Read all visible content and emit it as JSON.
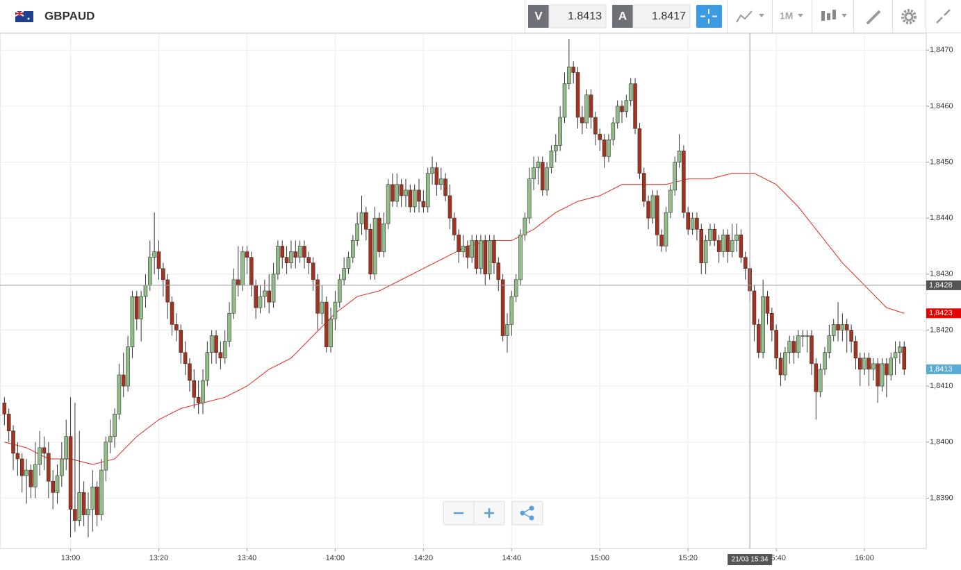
{
  "header": {
    "symbol": "GBPAUD",
    "sell": {
      "label": "V",
      "price": "1.8413"
    },
    "buy": {
      "label": "A",
      "price": "1.8417"
    },
    "timeframe": "1M"
  },
  "chart_data": {
    "type": "candlestick",
    "x": [
      "12:45",
      "12:46",
      "12:47",
      "12:48",
      "12:49",
      "12:50",
      "12:51",
      "12:52",
      "12:53",
      "12:54",
      "12:55",
      "12:56",
      "12:57",
      "12:58",
      "12:59",
      "13:00",
      "13:01",
      "13:02",
      "13:03",
      "13:04",
      "13:05",
      "13:06",
      "13:07",
      "13:08",
      "13:09",
      "13:10",
      "13:11",
      "13:12",
      "13:13",
      "13:14",
      "13:15",
      "13:16",
      "13:17",
      "13:18",
      "13:19",
      "13:20",
      "13:21",
      "13:22",
      "13:23",
      "13:24",
      "13:25",
      "13:26",
      "13:27",
      "13:28",
      "13:29",
      "13:30",
      "13:31",
      "13:32",
      "13:33",
      "13:34",
      "13:35",
      "13:36",
      "13:37",
      "13:38",
      "13:39",
      "13:40",
      "13:41",
      "13:42",
      "13:43",
      "13:44",
      "13:45",
      "13:46",
      "13:47",
      "13:48",
      "13:49",
      "13:50",
      "13:51",
      "13:52",
      "13:53",
      "13:54",
      "13:55",
      "13:56",
      "13:57",
      "13:58",
      "13:59",
      "14:00",
      "14:01",
      "14:02",
      "14:03",
      "14:04",
      "14:05",
      "14:06",
      "14:07",
      "14:08",
      "14:09",
      "14:10",
      "14:11",
      "14:12",
      "14:13",
      "14:14",
      "14:15",
      "14:16",
      "14:17",
      "14:18",
      "14:19",
      "14:20",
      "14:21",
      "14:22",
      "14:23",
      "14:24",
      "14:25",
      "14:26",
      "14:27",
      "14:28",
      "14:29",
      "14:30",
      "14:31",
      "14:32",
      "14:33",
      "14:34",
      "14:35",
      "14:36",
      "14:37",
      "14:38",
      "14:39",
      "14:40",
      "14:41",
      "14:42",
      "14:43",
      "14:44",
      "14:45",
      "14:46",
      "14:47",
      "14:48",
      "14:49",
      "14:50",
      "14:51",
      "14:52",
      "14:53",
      "14:54",
      "14:55",
      "14:56",
      "14:57",
      "14:58",
      "14:59",
      "15:00",
      "15:01",
      "15:02",
      "15:03",
      "15:04",
      "15:05",
      "15:06",
      "15:07",
      "15:08",
      "15:09",
      "15:10",
      "15:11",
      "15:12",
      "15:13",
      "15:14",
      "15:15",
      "15:16",
      "15:17",
      "15:18",
      "15:19",
      "15:20",
      "15:21",
      "15:22",
      "15:23",
      "15:24",
      "15:25",
      "15:26",
      "15:27",
      "15:28",
      "15:29",
      "15:30",
      "15:31",
      "15:32",
      "15:33",
      "15:34",
      "15:35",
      "15:36",
      "15:37",
      "15:38",
      "15:39",
      "15:40",
      "15:41",
      "15:42",
      "15:43",
      "15:44",
      "15:45",
      "15:46",
      "15:47",
      "15:48",
      "15:49",
      "15:50",
      "15:51",
      "15:52",
      "15:53",
      "15:54",
      "15:55",
      "15:56",
      "15:57",
      "15:58",
      "15:59",
      "16:00",
      "16:01",
      "16:02",
      "16:03",
      "16:04",
      "16:05",
      "16:06",
      "16:07",
      "16:08",
      "16:09"
    ],
    "open": [
      1.8407,
      1.8405,
      1.8402,
      1.8398,
      1.8397,
      1.8394,
      1.8395,
      1.8392,
      1.8396,
      1.8399,
      1.8398,
      1.8393,
      1.8391,
      1.8394,
      1.8397,
      1.8401,
      1.8388,
      1.8386,
      1.8391,
      1.8387,
      1.8388,
      1.8392,
      1.8387,
      1.8395,
      1.84,
      1.8401,
      1.8405,
      1.8412,
      1.841,
      1.8417,
      1.8426,
      1.8422,
      1.8426,
      1.8428,
      1.8433,
      1.8434,
      1.8431,
      1.8429,
      1.8425,
      1.8421,
      1.842,
      1.8416,
      1.8414,
      1.8411,
      1.8408,
      1.8407,
      1.8411,
      1.8416,
      1.8419,
      1.8416,
      1.8415,
      1.8418,
      1.8423,
      1.8429,
      1.8428,
      1.8434,
      1.8433,
      1.8428,
      1.8424,
      1.8426,
      1.8427,
      1.8425,
      1.843,
      1.8435,
      1.8433,
      1.8432,
      1.8434,
      1.8433,
      1.8435,
      1.8433,
      1.8432,
      1.8429,
      1.8423,
      1.8425,
      1.8417,
      1.8422,
      1.8425,
      1.8429,
      1.8431,
      1.8433,
      1.8436,
      1.8439,
      1.8441,
      1.8438,
      1.843,
      1.844,
      1.8434,
      1.8439,
      1.8446,
      1.8443,
      1.8446,
      1.8444,
      1.8445,
      1.8442,
      1.8445,
      1.8443,
      1.8442,
      1.8448,
      1.8449,
      1.8446,
      1.8447,
      1.8444,
      1.844,
      1.8437,
      1.8434,
      1.8435,
      1.8433,
      1.8436,
      1.8431,
      1.8436,
      1.843,
      1.8436,
      1.8432,
      1.8429,
      1.8419,
      1.8421,
      1.8426,
      1.8429,
      1.8437,
      1.844,
      1.8447,
      1.8449,
      1.845,
      1.8445,
      1.8449,
      1.8452,
      1.8453,
      1.8458,
      1.8464,
      1.8467,
      1.8466,
      1.8458,
      1.8457,
      1.8462,
      1.8458,
      1.8455,
      1.8454,
      1.8451,
      1.8454,
      1.8457,
      1.846,
      1.8459,
      1.8461,
      1.8464,
      1.8456,
      1.8448,
      1.8443,
      1.844,
      1.8444,
      1.8437,
      1.8435,
      1.8441,
      1.8445,
      1.845,
      1.8452,
      1.8441,
      1.8438,
      1.844,
      1.8438,
      1.8432,
      1.8436,
      1.8438,
      1.8436,
      1.8434,
      1.8437,
      1.8434,
      1.8436,
      1.8437,
      1.8433,
      1.8431,
      1.8427,
      1.8421,
      1.8416,
      1.8426,
      1.8423,
      1.842,
      1.8415,
      1.8412,
      1.8416,
      1.8418,
      1.8416,
      1.8419,
      1.8419,
      1.8419,
      1.8414,
      1.8409,
      1.8413,
      1.8416,
      1.8419,
      1.8421,
      1.842,
      1.8421,
      1.842,
      1.8418,
      1.8415,
      1.8413,
      1.8415,
      1.8413,
      1.8414,
      1.841,
      1.8414,
      1.8412,
      1.8415,
      1.8416,
      1.8417
    ],
    "high": [
      1.8408,
      1.8406,
      1.8403,
      1.84,
      1.8398,
      1.8397,
      1.8396,
      1.84,
      1.8402,
      1.8401,
      1.84,
      1.8395,
      1.8396,
      1.84,
      1.8404,
      1.8408,
      1.8407,
      1.8402,
      1.8393,
      1.8391,
      1.8395,
      1.8393,
      1.8397,
      1.8401,
      1.8404,
      1.8406,
      1.8414,
      1.8416,
      1.8419,
      1.8427,
      1.8427,
      1.8427,
      1.843,
      1.8436,
      1.8441,
      1.8436,
      1.8432,
      1.843,
      1.8426,
      1.8423,
      1.8421,
      1.8418,
      1.8415,
      1.8413,
      1.8411,
      1.8413,
      1.8418,
      1.842,
      1.842,
      1.8418,
      1.842,
      1.8425,
      1.8431,
      1.8435,
      1.8435,
      1.8435,
      1.8434,
      1.8429,
      1.8428,
      1.8429,
      1.843,
      1.8432,
      1.8436,
      1.8436,
      1.8435,
      1.8436,
      1.8436,
      1.8436,
      1.8436,
      1.8434,
      1.8433,
      1.843,
      1.8428,
      1.8426,
      1.8424,
      1.8427,
      1.843,
      1.8433,
      1.8434,
      1.8437,
      1.8441,
      1.8444,
      1.8442,
      1.8439,
      1.8442,
      1.8441,
      1.8441,
      1.8447,
      1.8448,
      1.8448,
      1.8447,
      1.8447,
      1.8446,
      1.8446,
      1.8447,
      1.8445,
      1.8449,
      1.8451,
      1.845,
      1.8449,
      1.8448,
      1.8446,
      1.8441,
      1.8438,
      1.8437,
      1.8436,
      1.8437,
      1.8437,
      1.8437,
      1.8437,
      1.8437,
      1.8437,
      1.8433,
      1.843,
      1.8423,
      1.8427,
      1.843,
      1.8438,
      1.8441,
      1.8449,
      1.8451,
      1.8451,
      1.8451,
      1.845,
      1.8453,
      1.8455,
      1.846,
      1.8466,
      1.8472,
      1.8468,
      1.8467,
      1.846,
      1.8463,
      1.8463,
      1.8459,
      1.8456,
      1.8455,
      1.8455,
      1.8458,
      1.8461,
      1.8461,
      1.8462,
      1.8465,
      1.8465,
      1.8457,
      1.8449,
      1.8444,
      1.8445,
      1.8445,
      1.8438,
      1.8442,
      1.8446,
      1.8451,
      1.8455,
      1.8453,
      1.8442,
      1.8441,
      1.8441,
      1.8439,
      1.8437,
      1.8439,
      1.8439,
      1.8437,
      1.8438,
      1.8438,
      1.8439,
      1.8439,
      1.8438,
      1.8434,
      1.8432,
      1.8428,
      1.8422,
      1.8429,
      1.8427,
      1.8424,
      1.8421,
      1.8416,
      1.8417,
      1.8419,
      1.8419,
      1.842,
      1.842,
      1.842,
      1.842,
      1.8415,
      1.8414,
      1.8417,
      1.8421,
      1.8422,
      1.8425,
      1.8423,
      1.8422,
      1.8421,
      1.8419,
      1.8416,
      1.8416,
      1.8416,
      1.8415,
      1.8415,
      1.8415,
      1.8415,
      1.8416,
      1.8418,
      1.8418,
      1.8418
    ],
    "low": [
      1.8403,
      1.84,
      1.8395,
      1.8394,
      1.8391,
      1.8389,
      1.839,
      1.839,
      1.8394,
      1.8395,
      1.839,
      1.8388,
      1.8389,
      1.8392,
      1.8395,
      1.8383,
      1.8384,
      1.8385,
      1.8385,
      1.8383,
      1.8384,
      1.8385,
      1.8386,
      1.8393,
      1.8398,
      1.8399,
      1.8404,
      1.8408,
      1.8409,
      1.8415,
      1.842,
      1.8418,
      1.8424,
      1.8427,
      1.843,
      1.8429,
      1.8426,
      1.8422,
      1.8419,
      1.8418,
      1.8414,
      1.8412,
      1.8409,
      1.8406,
      1.8405,
      1.8405,
      1.841,
      1.8414,
      1.8414,
      1.8413,
      1.8414,
      1.8417,
      1.8422,
      1.8426,
      1.8427,
      1.843,
      1.8426,
      1.8422,
      1.8423,
      1.8424,
      1.8423,
      1.8424,
      1.8429,
      1.8431,
      1.843,
      1.8431,
      1.8431,
      1.8432,
      1.8431,
      1.843,
      1.8427,
      1.842,
      1.8421,
      1.8416,
      1.8416,
      1.842,
      1.8424,
      1.8428,
      1.843,
      1.8432,
      1.8435,
      1.8437,
      1.8436,
      1.8429,
      1.8429,
      1.8433,
      1.8433,
      1.8438,
      1.8442,
      1.8442,
      1.8442,
      1.8442,
      1.8441,
      1.8441,
      1.8441,
      1.8441,
      1.8441,
      1.8446,
      1.8444,
      1.8445,
      1.8443,
      1.8438,
      1.8436,
      1.8432,
      1.8433,
      1.8431,
      1.8432,
      1.843,
      1.843,
      1.8428,
      1.8429,
      1.843,
      1.8427,
      1.8418,
      1.8416,
      1.8419,
      1.8425,
      1.8428,
      1.8436,
      1.8439,
      1.8445,
      1.8446,
      1.8444,
      1.8444,
      1.8448,
      1.845,
      1.8452,
      1.8457,
      1.8463,
      1.8464,
      1.8456,
      1.8455,
      1.8456,
      1.8456,
      1.8453,
      1.8452,
      1.8449,
      1.845,
      1.8453,
      1.8456,
      1.8457,
      1.8458,
      1.846,
      1.8455,
      1.8447,
      1.8442,
      1.8438,
      1.8439,
      1.8435,
      1.8434,
      1.8434,
      1.844,
      1.8444,
      1.8449,
      1.844,
      1.8437,
      1.8437,
      1.8436,
      1.843,
      1.843,
      1.8435,
      1.8435,
      1.8432,
      1.8433,
      1.8432,
      1.8433,
      1.8434,
      1.8432,
      1.8429,
      1.8425,
      1.8418,
      1.8415,
      1.8415,
      1.8421,
      1.8418,
      1.8413,
      1.841,
      1.8411,
      1.8414,
      1.8414,
      1.8415,
      1.8417,
      1.8416,
      1.8412,
      1.8404,
      1.8408,
      1.8412,
      1.8415,
      1.8418,
      1.8418,
      1.8418,
      1.8416,
      1.8416,
      1.8413,
      1.841,
      1.8412,
      1.841,
      1.8411,
      1.8407,
      1.8409,
      1.8408,
      1.8411,
      1.8412,
      1.8414,
      1.8412
    ],
    "close": [
      1.8405,
      1.8402,
      1.8398,
      1.8397,
      1.8394,
      1.8395,
      1.8392,
      1.8396,
      1.8399,
      1.8398,
      1.8393,
      1.8391,
      1.8394,
      1.8397,
      1.8401,
      1.8388,
      1.8386,
      1.8391,
      1.8387,
      1.8388,
      1.8392,
      1.8387,
      1.8395,
      1.84,
      1.8401,
      1.8405,
      1.8412,
      1.841,
      1.8417,
      1.8426,
      1.8422,
      1.8426,
      1.8428,
      1.8433,
      1.8434,
      1.8431,
      1.8429,
      1.8425,
      1.8421,
      1.842,
      1.8416,
      1.8414,
      1.8411,
      1.8408,
      1.8407,
      1.8411,
      1.8416,
      1.8419,
      1.8416,
      1.8415,
      1.8418,
      1.8423,
      1.8429,
      1.8428,
      1.8434,
      1.8433,
      1.8428,
      1.8424,
      1.8426,
      1.8427,
      1.8425,
      1.843,
      1.8435,
      1.8433,
      1.8432,
      1.8434,
      1.8433,
      1.8435,
      1.8433,
      1.8432,
      1.8429,
      1.8423,
      1.8425,
      1.8417,
      1.8422,
      1.8425,
      1.8429,
      1.8431,
      1.8433,
      1.8436,
      1.8439,
      1.8441,
      1.8438,
      1.843,
      1.844,
      1.8434,
      1.8439,
      1.8446,
      1.8443,
      1.8446,
      1.8444,
      1.8445,
      1.8442,
      1.8445,
      1.8443,
      1.8442,
      1.8448,
      1.8449,
      1.8446,
      1.8447,
      1.8444,
      1.844,
      1.8437,
      1.8434,
      1.8435,
      1.8433,
      1.8436,
      1.8431,
      1.8436,
      1.843,
      1.8436,
      1.8432,
      1.8429,
      1.8419,
      1.8421,
      1.8426,
      1.8429,
      1.8437,
      1.844,
      1.8447,
      1.8449,
      1.845,
      1.8445,
      1.8449,
      1.8452,
      1.8453,
      1.8458,
      1.8464,
      1.8467,
      1.8466,
      1.8458,
      1.8457,
      1.8462,
      1.8458,
      1.8455,
      1.8454,
      1.8451,
      1.8454,
      1.8457,
      1.846,
      1.8459,
      1.8461,
      1.8464,
      1.8456,
      1.8448,
      1.8443,
      1.844,
      1.8444,
      1.8437,
      1.8435,
      1.8441,
      1.8445,
      1.845,
      1.8452,
      1.8441,
      1.8438,
      1.844,
      1.8438,
      1.8432,
      1.8436,
      1.8438,
      1.8436,
      1.8434,
      1.8437,
      1.8434,
      1.8436,
      1.8437,
      1.8433,
      1.8431,
      1.8427,
      1.8421,
      1.8416,
      1.8426,
      1.8423,
      1.842,
      1.8415,
      1.8412,
      1.8416,
      1.8418,
      1.8416,
      1.8419,
      1.8419,
      1.8419,
      1.8414,
      1.8409,
      1.8413,
      1.8416,
      1.8419,
      1.8421,
      1.842,
      1.8421,
      1.842,
      1.8418,
      1.8415,
      1.8413,
      1.8415,
      1.8413,
      1.8414,
      1.841,
      1.8414,
      1.8412,
      1.8415,
      1.8416,
      1.8417,
      1.8413
    ],
    "up_color": "#93bd88",
    "down_color": "#a3321f",
    "ma": {
      "color": "#e0281e",
      "x": [
        "12:45",
        "12:50",
        "12:55",
        "13:00",
        "13:05",
        "13:10",
        "13:15",
        "13:20",
        "13:25",
        "13:30",
        "13:35",
        "13:40",
        "13:45",
        "13:50",
        "13:55",
        "14:00",
        "14:05",
        "14:10",
        "14:15",
        "14:20",
        "14:25",
        "14:30",
        "14:35",
        "14:40",
        "14:45",
        "14:50",
        "14:55",
        "15:00",
        "15:05",
        "15:10",
        "15:15",
        "15:20",
        "15:25",
        "15:30",
        "15:35",
        "15:40",
        "15:45",
        "15:50",
        "15:55",
        "16:00",
        "16:05",
        "16:09"
      ],
      "values": [
        1.84,
        1.8399,
        1.8397,
        1.8397,
        1.8396,
        1.8397,
        1.8401,
        1.8404,
        1.8406,
        1.8407,
        1.8408,
        1.841,
        1.8413,
        1.8415,
        1.8419,
        1.8423,
        1.8426,
        1.8427,
        1.8429,
        1.8431,
        1.8433,
        1.8435,
        1.8436,
        1.8436,
        1.8438,
        1.8441,
        1.8443,
        1.8444,
        1.8446,
        1.8446,
        1.8446,
        1.8447,
        1.8447,
        1.8448,
        1.8448,
        1.8446,
        1.8442,
        1.8437,
        1.8432,
        1.8428,
        1.8424,
        1.8423
      ]
    },
    "xlim": [
      "12:44",
      "16:14"
    ],
    "xticks": [
      "13:00",
      "13:20",
      "13:40",
      "14:00",
      "14:20",
      "14:40",
      "15:00",
      "15:20",
      "15:40",
      "16:00"
    ],
    "ylim": [
      1.8381,
      1.8473
    ],
    "yticks": [
      {
        "value": 1.839,
        "label": "1,8390"
      },
      {
        "value": 1.84,
        "label": "1,8400"
      },
      {
        "value": 1.841,
        "label": "1,8410"
      },
      {
        "value": 1.842,
        "label": "1,8420"
      },
      {
        "value": 1.843,
        "label": "1,8430"
      },
      {
        "value": 1.844,
        "label": "1,8440"
      },
      {
        "value": 1.845,
        "label": "1,8450"
      },
      {
        "value": 1.846,
        "label": "1,8460"
      },
      {
        "value": 1.847,
        "label": "1,8470"
      }
    ],
    "grid": true,
    "price_labels": [
      {
        "value": 1.8423,
        "label": "1,8423",
        "color": "#e50000"
      },
      {
        "value": 1.8413,
        "label": "1,8413",
        "color": "#5aaad8"
      }
    ],
    "crosshair": {
      "x": "15:34",
      "x_label": "21/03 15:34",
      "y": {
        "value": 1.8428,
        "label": "1,8428"
      }
    }
  }
}
